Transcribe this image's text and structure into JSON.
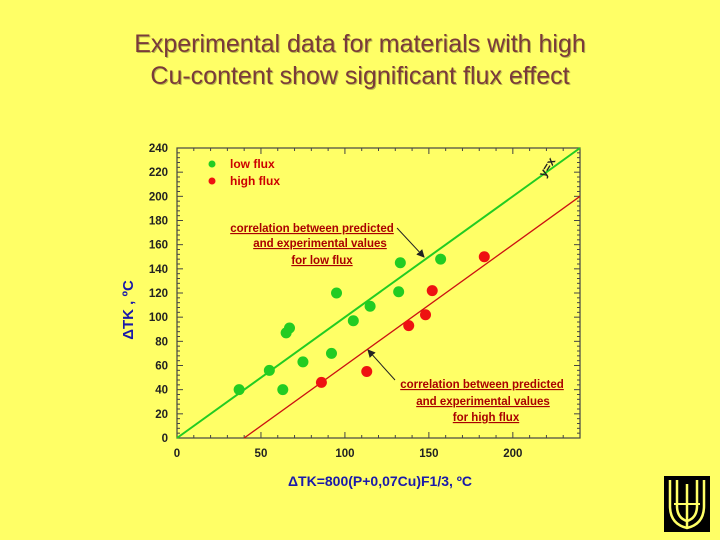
{
  "slide": {
    "title_line1": "Experimental data for materials with high",
    "title_line2": "Cu-content show significant flux effect"
  },
  "colors": {
    "background": "#ffff66",
    "title": "#7a3a3a",
    "low_flux": "#22cc22",
    "high_flux": "#ee1111",
    "annotation": "#aa0000"
  },
  "chart_data": {
    "type": "scatter",
    "title": "",
    "xlabel": "ΔTK=800(P+0,07Cu)F1/3, ºC",
    "ylabel": "ΔTK , ºC",
    "xlim": [
      0,
      240
    ],
    "ylim": [
      0,
      240
    ],
    "xticks": [
      0,
      50,
      100,
      150,
      200
    ],
    "yticks": [
      0,
      20,
      40,
      60,
      80,
      100,
      120,
      140,
      160,
      180,
      200,
      220,
      240
    ],
    "grid": false,
    "legend_position": "top-left",
    "series": [
      {
        "name": "low flux",
        "color": "#22cc22",
        "x": [
          37,
          55,
          63,
          65,
          67,
          75,
          92,
          95,
          105,
          115,
          132,
          133,
          157
        ],
        "y": [
          40,
          56,
          40,
          87,
          91,
          63,
          70,
          120,
          97,
          109,
          121,
          145,
          148
        ]
      },
      {
        "name": "high flux",
        "color": "#ee1111",
        "x": [
          86,
          113,
          138,
          148,
          152,
          183
        ],
        "y": [
          46,
          55,
          93,
          102,
          122,
          150
        ]
      }
    ],
    "lines": [
      {
        "id": "green-line",
        "label": "y=x",
        "color": "#22cc22",
        "x": [
          0,
          240
        ],
        "y": [
          0,
          240
        ]
      },
      {
        "id": "red-line",
        "color": "#cc1111",
        "x": [
          40,
          240
        ],
        "y": [
          0,
          200
        ]
      }
    ],
    "annotations": {
      "yx_label": "y=x",
      "low": {
        "line1": "correlation between predicted",
        "line2": "and experimental values",
        "line3": "for low flux"
      },
      "high": {
        "line1": "correlation between predicted",
        "line2": "and experimental values",
        "line3": "for high flux"
      }
    }
  }
}
